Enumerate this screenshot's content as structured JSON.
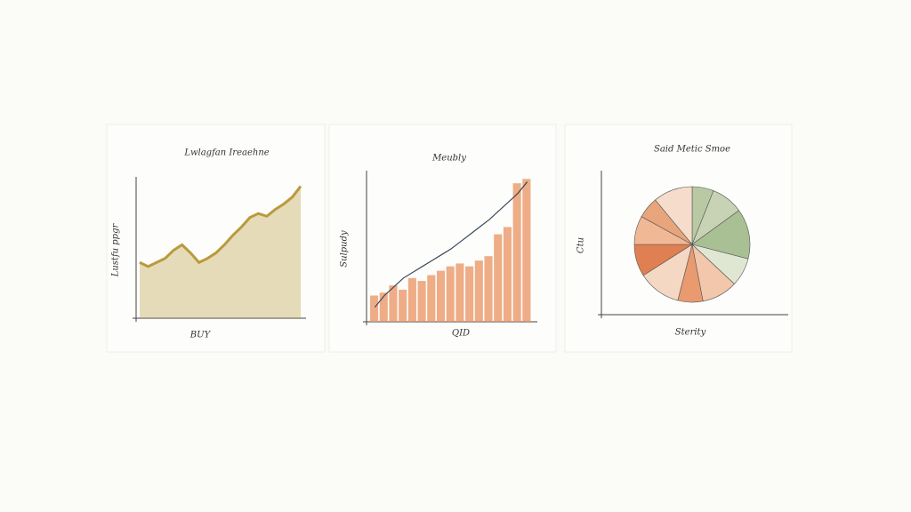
{
  "chart_data": [
    {
      "type": "area",
      "title": "Lwlagfan Ireaehne",
      "x_label": "BUY",
      "y_label": "Lustfu ppgr",
      "values": [
        41,
        38,
        41,
        44,
        50,
        54,
        48,
        41,
        44,
        48,
        54,
        61,
        67,
        74,
        77,
        75,
        80,
        84,
        89,
        97
      ],
      "color": "#b99a3c",
      "ylim": [
        0,
        100
      ]
    },
    {
      "type": "bar",
      "title": "Meubly",
      "x_label": "QID",
      "y_label": "Sulpudy",
      "values": [
        18,
        20,
        25,
        22,
        30,
        28,
        32,
        35,
        38,
        40,
        38,
        42,
        45,
        60,
        65,
        95,
        98
      ],
      "trend_values": [
        10,
        18,
        24,
        30,
        34,
        38,
        42,
        46,
        50,
        55,
        60,
        65,
        70,
        76,
        82,
        88,
        96
      ],
      "color": "#e8925f",
      "trend_color": "#3a4a5a",
      "ylim": [
        0,
        100
      ]
    },
    {
      "type": "pie",
      "title": "Said Metic Smoe",
      "x_label": "Sterity",
      "y_label": "Ctu",
      "values": [
        6,
        9,
        14,
        8,
        10,
        7,
        12,
        9,
        8,
        6,
        11
      ],
      "colors": [
        "#b9c9a3",
        "#c7d3b4",
        "#a9bf94",
        "#dfe6d2",
        "#f2c7ab",
        "#e99a6e",
        "#f5d8c4",
        "#e07f52",
        "#f0b894",
        "#e8a57c",
        "#f6dccb"
      ]
    }
  ]
}
